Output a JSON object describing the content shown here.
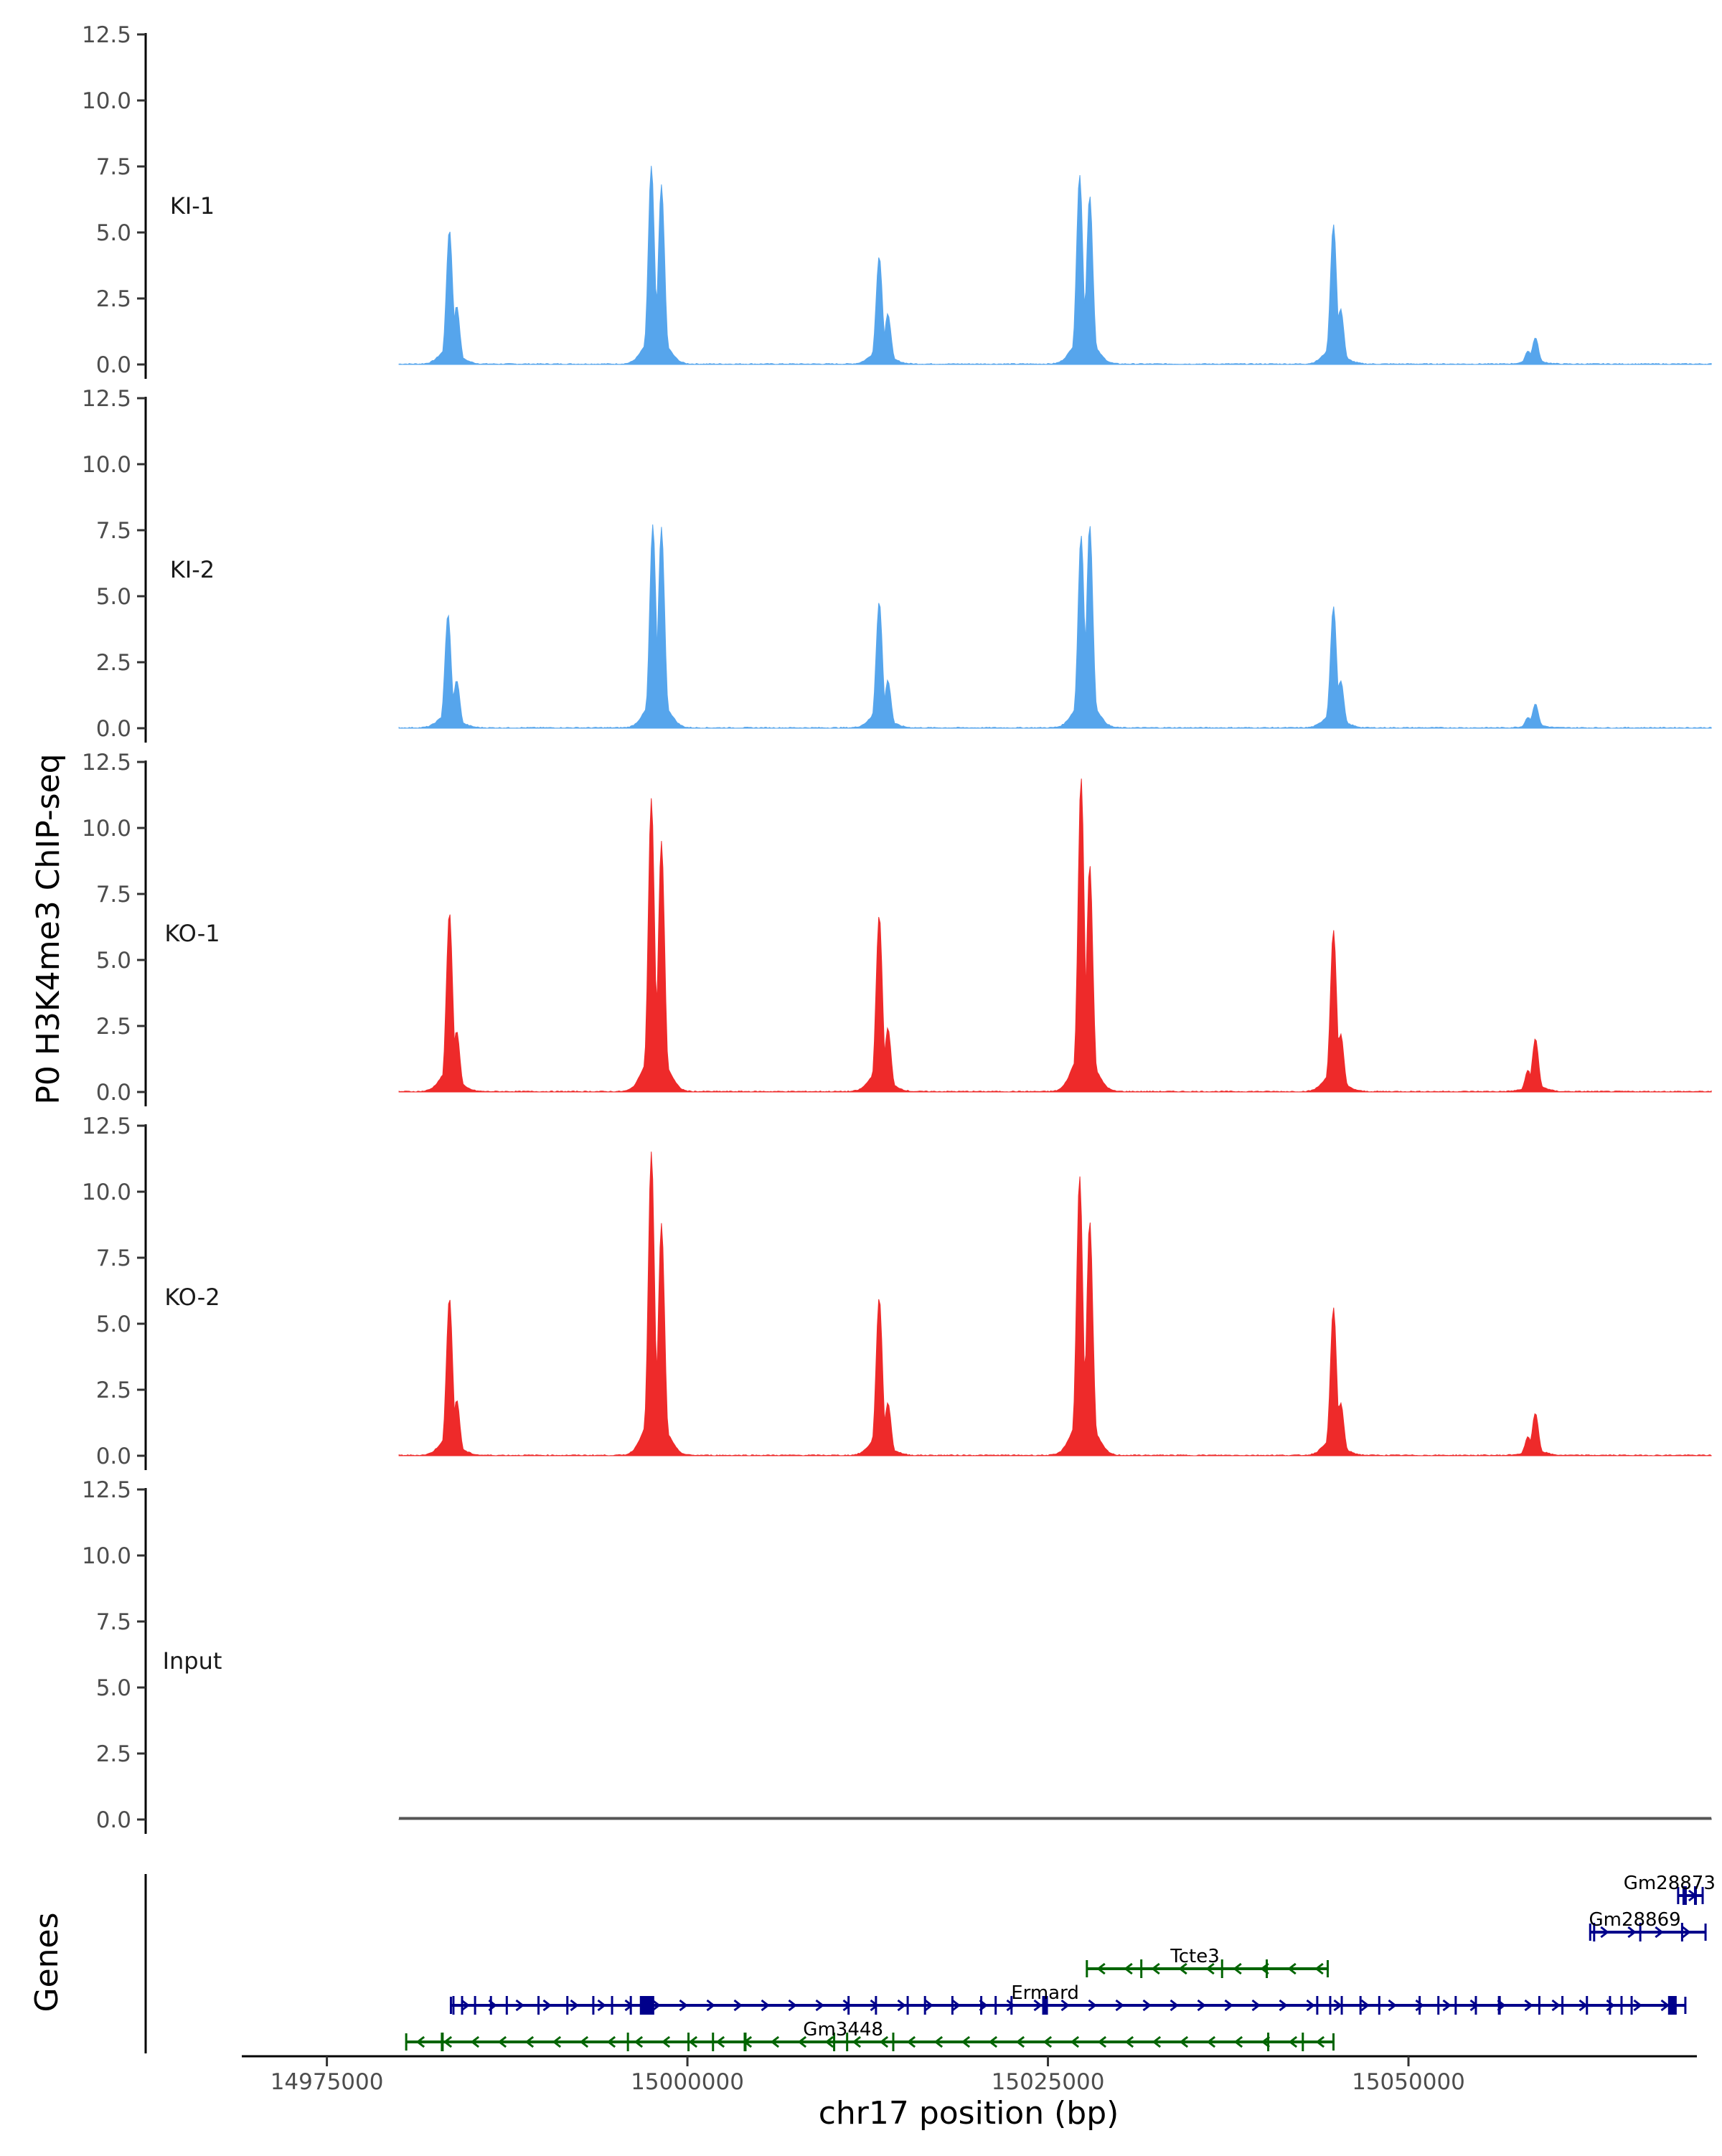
{
  "chart_data": {
    "type": "area",
    "ylabel": "P0 H3K4me3 ChIP-seq",
    "xlabel": "chr17 position (bp)",
    "xlim": [
      14969000,
      15070000
    ],
    "x_ticks": [
      14975000,
      15000000,
      15025000,
      15050000
    ],
    "x_tick_labels": [
      "14975000",
      "15000000",
      "15025000",
      "15050000"
    ],
    "ylim": [
      0,
      12.5
    ],
    "y_ticks": [
      0,
      2.5,
      5,
      7.5,
      10,
      12.5
    ],
    "y_tick_labels": [
      "0.0",
      "2.5",
      "5.0",
      "7.5",
      "10.0",
      "12.5"
    ],
    "region": [
      14980000,
      15071000
    ],
    "tracks": [
      {
        "name": "KI-1",
        "color": "#56a5ec",
        "peaks": [
          {
            "x": 14983500,
            "y": 5.1
          },
          {
            "x": 14984000,
            "y": 2.2
          },
          {
            "x": 14997500,
            "y": 7.5
          },
          {
            "x": 14998200,
            "y": 6.8
          },
          {
            "x": 15013300,
            "y": 4.1
          },
          {
            "x": 15013900,
            "y": 1.9
          },
          {
            "x": 15027200,
            "y": 7.2
          },
          {
            "x": 15027900,
            "y": 6.4
          },
          {
            "x": 15044800,
            "y": 5.3
          },
          {
            "x": 15045300,
            "y": 2.1
          },
          {
            "x": 15058800,
            "y": 1.0
          },
          {
            "x": 15058300,
            "y": 0.5
          }
        ]
      },
      {
        "name": "KI-2",
        "color": "#56a5ec",
        "peaks": [
          {
            "x": 14983400,
            "y": 4.3
          },
          {
            "x": 14984000,
            "y": 1.8
          },
          {
            "x": 14997600,
            "y": 7.7
          },
          {
            "x": 14998200,
            "y": 7.6
          },
          {
            "x": 15013300,
            "y": 4.8
          },
          {
            "x": 15013900,
            "y": 1.8
          },
          {
            "x": 15027300,
            "y": 7.3
          },
          {
            "x": 15027900,
            "y": 7.7
          },
          {
            "x": 15044800,
            "y": 4.6
          },
          {
            "x": 15045300,
            "y": 1.8
          },
          {
            "x": 15058800,
            "y": 0.9
          },
          {
            "x": 15058300,
            "y": 0.4
          }
        ]
      },
      {
        "name": "KO-1",
        "color": "#ee2a2a",
        "peaks": [
          {
            "x": 14983500,
            "y": 6.8
          },
          {
            "x": 14984000,
            "y": 2.3
          },
          {
            "x": 14997500,
            "y": 11.1
          },
          {
            "x": 14998200,
            "y": 9.5
          },
          {
            "x": 15013300,
            "y": 6.7
          },
          {
            "x": 15013900,
            "y": 2.4
          },
          {
            "x": 15027300,
            "y": 11.9
          },
          {
            "x": 15027900,
            "y": 8.6
          },
          {
            "x": 15044800,
            "y": 6.1
          },
          {
            "x": 15045300,
            "y": 2.2
          },
          {
            "x": 15058800,
            "y": 2.0
          },
          {
            "x": 15058300,
            "y": 0.8
          }
        ]
      },
      {
        "name": "KO-2",
        "color": "#ee2a2a",
        "peaks": [
          {
            "x": 14983500,
            "y": 6.0
          },
          {
            "x": 14984000,
            "y": 2.1
          },
          {
            "x": 14997500,
            "y": 11.5
          },
          {
            "x": 14998200,
            "y": 8.8
          },
          {
            "x": 15013300,
            "y": 6.0
          },
          {
            "x": 15013900,
            "y": 2.0
          },
          {
            "x": 15027200,
            "y": 10.6
          },
          {
            "x": 15027900,
            "y": 8.9
          },
          {
            "x": 15044800,
            "y": 5.6
          },
          {
            "x": 15045300,
            "y": 2.0
          },
          {
            "x": 15058800,
            "y": 1.6
          },
          {
            "x": 15058300,
            "y": 0.7
          }
        ]
      },
      {
        "name": "Input",
        "color": "#555555",
        "peaks": []
      }
    ],
    "genes_label": "Genes",
    "genes": [
      {
        "name": "Gm28873",
        "start": 15068700,
        "end": 15070400,
        "strand": "+",
        "color": "#00008b",
        "row": 4,
        "exons": [
          [
            15069000,
            15069300
          ],
          [
            15069800,
            15070000
          ]
        ],
        "label_x": 15068100
      },
      {
        "name": "Gm28869",
        "start": 15062600,
        "end": 15070600,
        "strand": "+",
        "color": "#00008b",
        "row": 3,
        "exons": [
          [
            15062800,
            15062900
          ],
          [
            15066000,
            15066100
          ],
          [
            15068900,
            15069000
          ]
        ],
        "label_x": 15065700
      },
      {
        "name": "Tcte3",
        "start": 15027700,
        "end": 15044400,
        "strand": "-",
        "color": "#006400",
        "row": 2,
        "exons": [
          [
            15031400,
            15031500
          ],
          [
            15037000,
            15037100
          ],
          [
            15040100,
            15040200
          ]
        ],
        "label_x": 15035200
      },
      {
        "name": "Ermard",
        "start": 14983600,
        "end": 15069200,
        "strand": "+",
        "color": "#00008b",
        "row": 1,
        "exons": [
          [
            14983700,
            14983800
          ],
          [
            14984300,
            14984400
          ],
          [
            14985200,
            14985300
          ],
          [
            14986300,
            14986400
          ],
          [
            14987400,
            14987500
          ],
          [
            14989600,
            14989700
          ],
          [
            14991600,
            14991700
          ],
          [
            14993400,
            14993500
          ],
          [
            14994700,
            14994800
          ],
          [
            14996000,
            14996100
          ],
          [
            14996700,
            14997700
          ],
          [
            15011100,
            15011200
          ],
          [
            15013000,
            15013100
          ],
          [
            15015200,
            15015300
          ],
          [
            15016400,
            15016500
          ],
          [
            15018300,
            15018400
          ],
          [
            15020300,
            15020400
          ],
          [
            15021300,
            15021400
          ],
          [
            15022400,
            15022500
          ],
          [
            15024600,
            15025000
          ],
          [
            15043600,
            15043700
          ],
          [
            15044500,
            15044600
          ],
          [
            15045300,
            15045400
          ],
          [
            15046600,
            15046700
          ],
          [
            15047900,
            15048000
          ],
          [
            15050700,
            15050800
          ],
          [
            15052000,
            15052100
          ],
          [
            15053200,
            15053300
          ],
          [
            15054600,
            15054700
          ],
          [
            15056200,
            15056400
          ],
          [
            15059000,
            15059100
          ],
          [
            15060600,
            15060700
          ],
          [
            15062300,
            15062400
          ],
          [
            15063900,
            15064000
          ],
          [
            15064700,
            15064800
          ],
          [
            15065400,
            15065500
          ],
          [
            15068000,
            15068600
          ]
        ],
        "label_x": 15024800
      },
      {
        "name": "Gm3448",
        "start": 14980500,
        "end": 15044800,
        "strand": "-",
        "color": "#006400",
        "row": 0,
        "exons": [
          [
            14982900,
            14983100
          ],
          [
            14995800,
            14995900
          ],
          [
            15000000,
            15000100
          ],
          [
            15001700,
            15001800
          ],
          [
            15003900,
            15004100
          ],
          [
            15010100,
            15010200
          ],
          [
            15011000,
            15011100
          ],
          [
            15014200,
            15014300
          ],
          [
            15040200,
            15040300
          ],
          [
            15042600,
            15042700
          ]
        ],
        "label_x": 15010800
      }
    ]
  }
}
